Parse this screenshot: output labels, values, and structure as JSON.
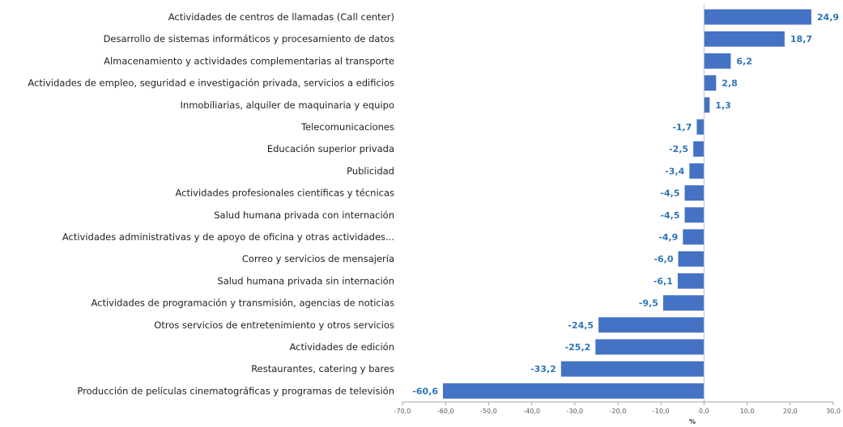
{
  "chart_data": {
    "type": "bar",
    "orientation": "horizontal",
    "categories": [
      "Actividades de centros de llamadas (Call center)",
      "Desarrollo de sistemas informáticos y procesamiento de datos",
      "Almacenamiento y actividades complementarias al transporte",
      "Actividades de empleo, seguridad e investigación privada, servicios a edificios",
      "Inmobiliarias, alquiler de maquinaria y equipo",
      "Telecomunicaciones",
      "Educación superior privada",
      "Publicidad",
      "Actividades profesionales científicas y técnicas",
      "Salud humana privada con internación",
      "Actividades administrativas y de apoyo de oficina y otras actividades...",
      "Correo y servicios de mensajería",
      "Salud humana privada sin internación",
      "Actividades de programación y transmisión,  agencias de noticias",
      "Otros servicios de entretenimiento y otros servicios",
      "Actividades de edición",
      "Restaurantes, catering y bares",
      "Producción de películas cinematográficas y programas de televisión"
    ],
    "values": [
      24.9,
      18.7,
      6.2,
      2.8,
      1.3,
      -1.7,
      -2.5,
      -3.4,
      -4.5,
      -4.5,
      -4.9,
      -6.0,
      -6.1,
      -9.5,
      -24.5,
      -25.2,
      -33.2,
      -60.6
    ],
    "value_labels": [
      "24,9",
      "18,7",
      "6,2",
      "2,8",
      "1,3",
      "-1,7",
      "-2,5",
      "-3,4",
      "-4,5",
      "-4,5",
      "-4,9",
      "-6,0",
      "-6,1",
      "-9,5",
      "-24,5",
      "-25,2",
      "-33,2",
      "-60,6"
    ],
    "xlim": [
      -70,
      30
    ],
    "ticks": [
      -70,
      -60,
      -50,
      -40,
      -30,
      -20,
      -10,
      0,
      10,
      20,
      30
    ],
    "tick_labels": [
      "-70,0",
      "-60,0",
      "-50,0",
      "-40,0",
      "-30,0",
      "-20,0",
      "-10,0",
      "0,0",
      "10,0",
      "20,0",
      "30,0"
    ],
    "xlabel": "%",
    "title": "",
    "grid": false,
    "bar_color": "#4472c4",
    "label_color": "#2e75b6"
  }
}
